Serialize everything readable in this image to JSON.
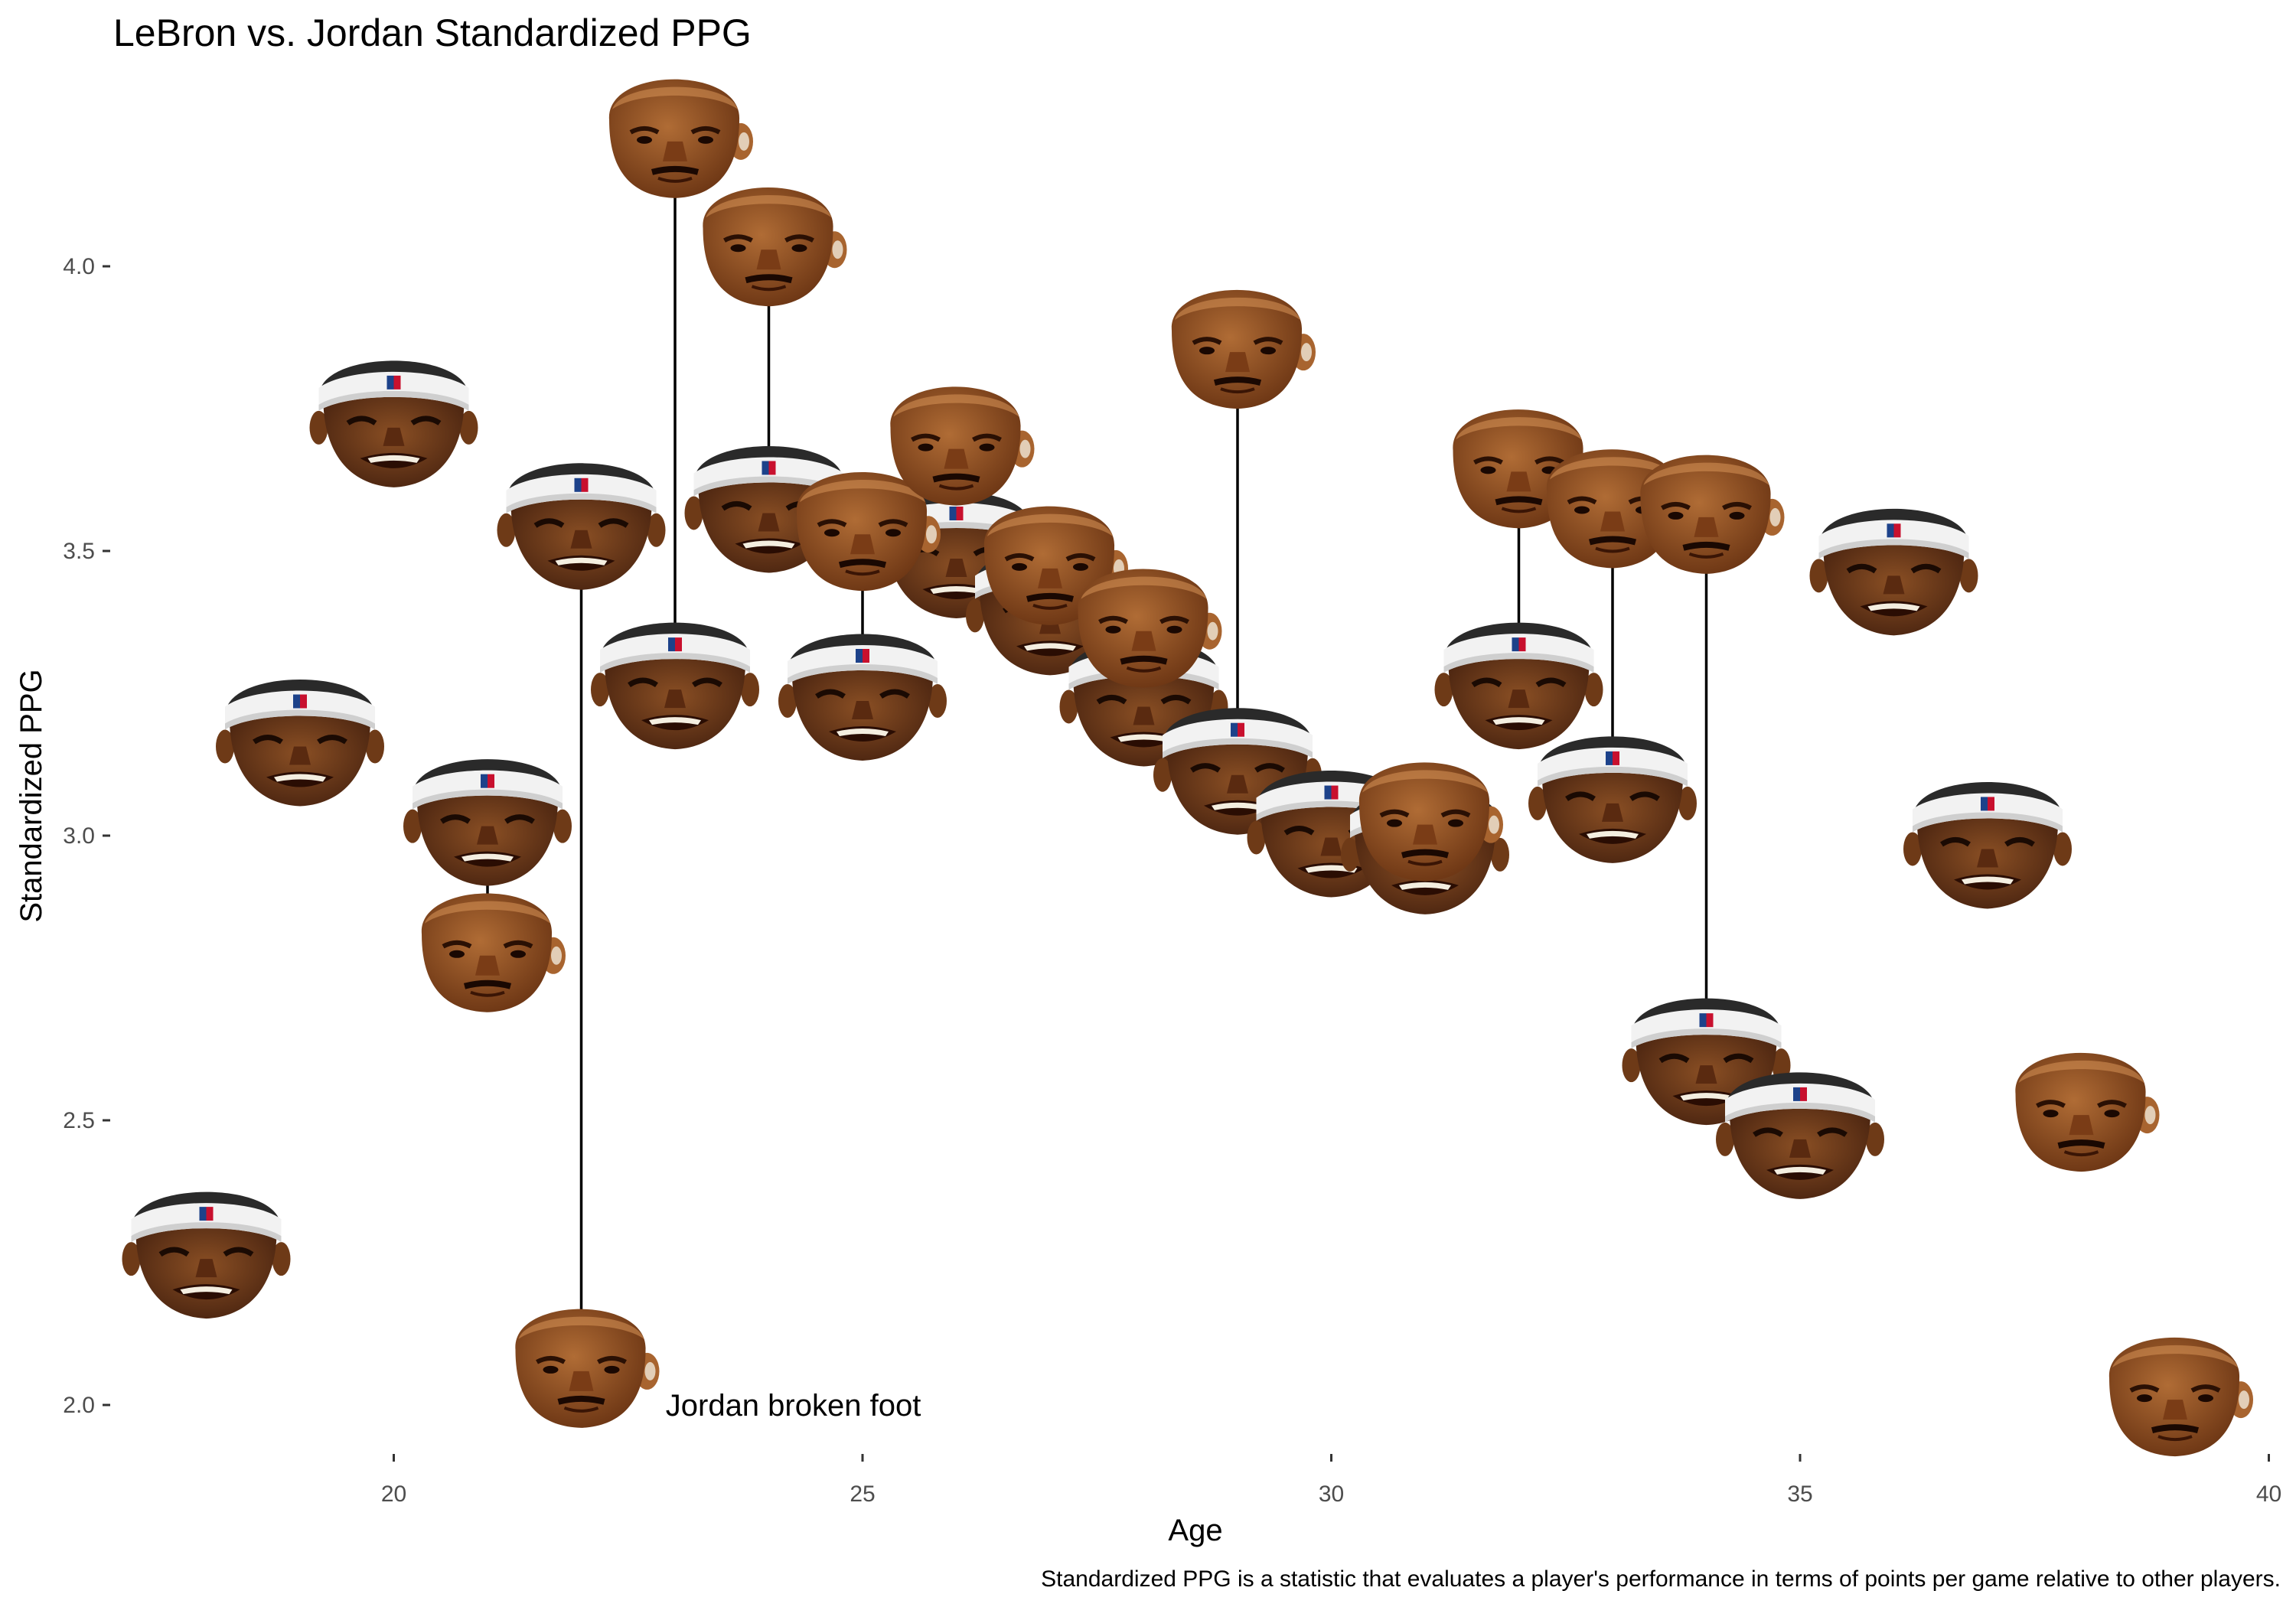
{
  "chart_data": {
    "type": "scatter",
    "title": "LeBron vs. Jordan Standardized PPG",
    "xlabel": "Age",
    "ylabel": "Standardized PPG",
    "caption": "Standardized PPG is a statistic that evaluates a player's performance in terms of points per game relative to other players.",
    "xlim": [
      17,
      40
    ],
    "ylim": [
      1.9,
      4.35
    ],
    "xticks": [
      20,
      25,
      30,
      35,
      40
    ],
    "yticks": [
      "2.0",
      "2.5",
      "3.0",
      "3.5",
      "4.0"
    ],
    "grid": false,
    "legend": "none",
    "annotations": [
      {
        "text": "Jordan broken foot",
        "x": 22.9,
        "y": 2.0
      }
    ],
    "series": [
      {
        "marker": "lebron-face",
        "x": [
          18,
          19,
          20,
          21,
          22,
          23,
          24,
          25,
          26,
          27,
          28,
          29,
          30,
          31,
          32,
          33,
          34,
          35,
          36,
          37
        ],
        "y": [
          2.27,
          3.17,
          3.73,
          3.03,
          3.55,
          3.27,
          3.58,
          3.25,
          3.5,
          3.4,
          3.24,
          3.12,
          3.01,
          2.98,
          3.27,
          3.07,
          2.61,
          2.48,
          3.47,
          2.99
        ]
      },
      {
        "marker": "jordan-face",
        "x": [
          21,
          22,
          23,
          24,
          25,
          26,
          27,
          28,
          29,
          31,
          32,
          33,
          34,
          38,
          39
        ],
        "y": [
          2.8,
          2.07,
          4.23,
          4.04,
          3.54,
          3.69,
          3.48,
          3.37,
          3.86,
          3.03,
          3.65,
          3.58,
          3.57,
          2.52,
          2.02
        ]
      }
    ]
  },
  "colors": {
    "headband": "#f2f2f2",
    "headband_shade": "#cfcfcf",
    "nba_logo_blue": "#1d428a",
    "nba_logo_red": "#c8102e",
    "skin_light": "#a8642f",
    "skin_dark": "#6e3a17",
    "line": "#000000",
    "tick_label": "#4d4d4d"
  }
}
